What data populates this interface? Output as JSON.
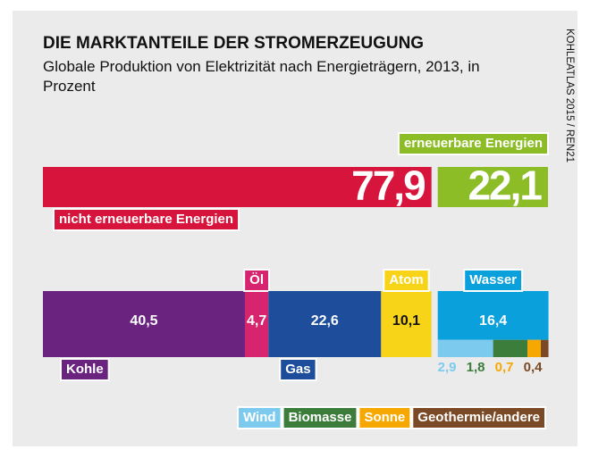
{
  "chart_data": {
    "type": "bar",
    "title": "DIE MARKTANTEILE DER STROMERZEUGUNG",
    "subtitle": "Globale Produktion von Elektrizität nach Energieträgern, 2013, in Prozent",
    "source": "KOHLEATLAS 2015 / REN21",
    "share": {
      "categories": [
        "nicht erneuerbare Energien",
        "erneuerbare Energien"
      ],
      "values": [
        77.9,
        22.1
      ],
      "value_labels": [
        "77,9",
        "22,1"
      ],
      "colors": [
        "#d7143c",
        "#8cbd27"
      ]
    },
    "fossil": {
      "categories": [
        "Kohle",
        "Öl",
        "Gas",
        "Atom"
      ],
      "values": [
        40.5,
        4.7,
        22.6,
        10.1
      ],
      "value_labels": [
        "40,5",
        "4,7",
        "22,6",
        "10,1"
      ],
      "colors": [
        "#6a2480",
        "#d6246e",
        "#1e4d9b",
        "#f7d417"
      ]
    },
    "renewable": {
      "categories": [
        "Wasser",
        "Wind",
        "Biomasse",
        "Sonne",
        "Geothermie/andere"
      ],
      "values": [
        16.4,
        2.9,
        1.8,
        0.7,
        0.4
      ],
      "value_labels": [
        "16,4",
        "2,9",
        "1,8",
        "0,7",
        "0,4"
      ],
      "colors": [
        "#0aa0dc",
        "#7ccbee",
        "#3c7d3c",
        "#f7a800",
        "#7a4a26"
      ]
    }
  }
}
